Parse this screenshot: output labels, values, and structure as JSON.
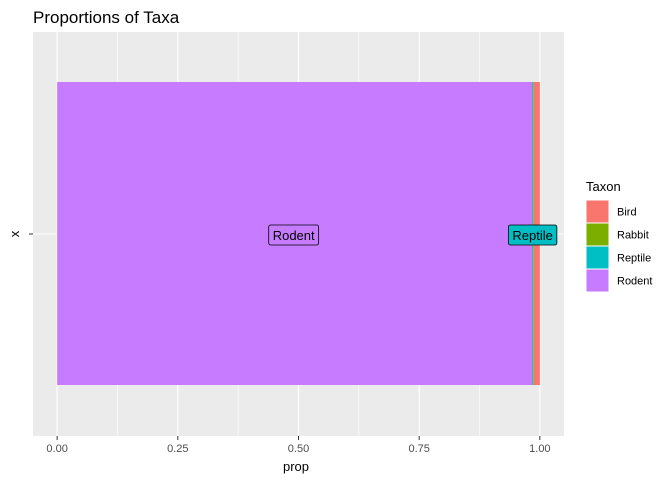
{
  "chart_data": {
    "type": "bar",
    "orientation": "horizontal",
    "stacked": true,
    "title": "Proportions of Taxa",
    "xlabel": "prop",
    "ylabel": "x",
    "xlim": [
      -0.05,
      1.05
    ],
    "x_ticks": [
      0.0,
      0.25,
      0.5,
      0.75,
      1.0
    ],
    "x_tick_labels": [
      "0.00",
      "0.25",
      "0.50",
      "0.75",
      "1.00"
    ],
    "y_tick_labels": [
      ""
    ],
    "grid": true,
    "legend": {
      "title": "Taxon",
      "placement": "right"
    },
    "series": [
      {
        "name": "Bird",
        "color": "#F8766D",
        "value": 0.013
      },
      {
        "name": "Rabbit",
        "color": "#7CAE00",
        "value": 0.001
      },
      {
        "name": "Reptile",
        "color": "#00BFC4",
        "value": 0.002
      },
      {
        "name": "Rodent",
        "color": "#C77CFF",
        "value": 0.984
      }
    ],
    "stack_order_from_left": [
      "Rodent",
      "Reptile",
      "Rabbit",
      "Bird"
    ],
    "annotations": [
      {
        "label": "Rodent",
        "x": 0.49,
        "fill": "#C77CFF"
      },
      {
        "label": "Reptile",
        "x": 0.985,
        "fill": "#00BFC4"
      }
    ]
  }
}
